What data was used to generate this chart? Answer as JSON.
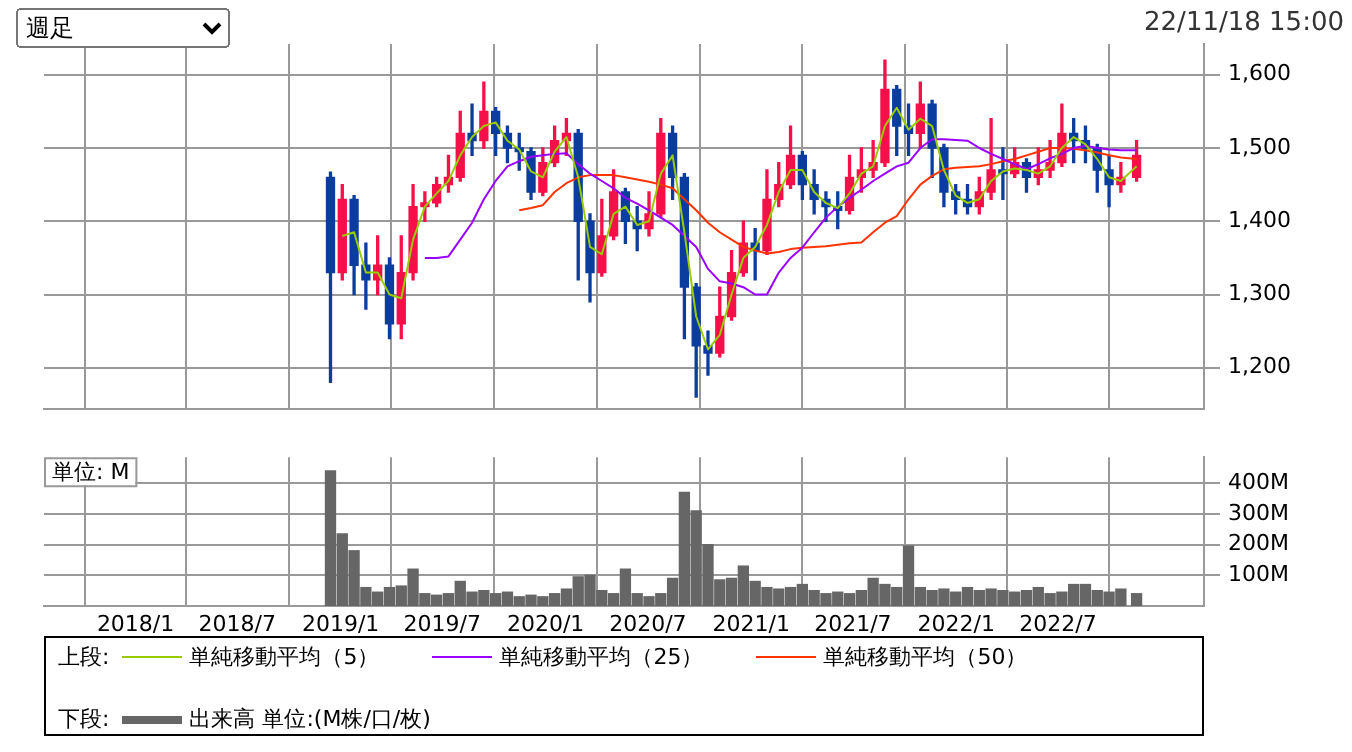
{
  "chart_data": [
    {
      "type": "candlestick",
      "legend_title": "上段:",
      "annotations": [
        "週足",
        "22/11/18 15:00"
      ],
      "x": [
        "2018-12-14",
        "2019-01-04",
        "2019-01-25",
        "2019-02-15",
        "2019-03-08",
        "2019-03-29",
        "2019-04-19",
        "2019-05-10",
        "2019-05-31",
        "2019-06-21",
        "2019-07-12",
        "2019-08-02",
        "2019-08-23",
        "2019-09-13",
        "2019-10-04",
        "2019-10-25",
        "2019-11-15",
        "2019-12-06",
        "2019-12-27",
        "2020-01-17",
        "2020-02-07",
        "2020-02-28",
        "2020-03-20",
        "2020-04-10",
        "2020-05-01",
        "2020-05-22",
        "2020-06-12",
        "2020-07-03",
        "2020-07-24",
        "2020-08-14",
        "2020-09-04",
        "2020-09-25",
        "2020-10-16",
        "2020-11-06",
        "2020-11-27",
        "2020-12-18",
        "2021-01-08",
        "2021-01-29",
        "2021-02-19",
        "2021-03-12",
        "2021-04-02",
        "2021-04-23",
        "2021-05-14",
        "2021-06-04",
        "2021-06-25",
        "2021-07-16",
        "2021-08-06",
        "2021-08-27",
        "2021-09-17",
        "2021-10-08",
        "2021-10-29",
        "2021-11-19",
        "2021-12-10",
        "2021-12-31",
        "2022-01-21",
        "2022-02-11",
        "2022-03-04",
        "2022-03-25",
        "2022-04-15",
        "2022-05-06",
        "2022-05-27",
        "2022-06-17",
        "2022-07-08",
        "2022-07-29",
        "2022-08-19",
        "2022-09-09",
        "2022-09-30",
        "2022-10-21",
        "2022-11-18"
      ],
      "ohlc": [
        [
          1460,
          1467,
          1180,
          1330
        ],
        [
          1330,
          1450,
          1320,
          1430
        ],
        [
          1430,
          1435,
          1300,
          1340
        ],
        [
          1340,
          1370,
          1280,
          1320
        ],
        [
          1320,
          1380,
          1300,
          1340
        ],
        [
          1340,
          1350,
          1240,
          1260
        ],
        [
          1260,
          1380,
          1240,
          1330
        ],
        [
          1330,
          1450,
          1320,
          1420
        ],
        [
          1420,
          1440,
          1400,
          1425
        ],
        [
          1425,
          1460,
          1420,
          1450
        ],
        [
          1450,
          1490,
          1440,
          1460
        ],
        [
          1460,
          1550,
          1455,
          1520
        ],
        [
          1520,
          1560,
          1490,
          1510
        ],
        [
          1510,
          1590,
          1500,
          1550
        ],
        [
          1550,
          1555,
          1490,
          1520
        ],
        [
          1520,
          1530,
          1480,
          1500
        ],
        [
          1500,
          1520,
          1470,
          1495
        ],
        [
          1495,
          1500,
          1430,
          1440
        ],
        [
          1440,
          1500,
          1435,
          1480
        ],
        [
          1480,
          1530,
          1475,
          1510
        ],
        [
          1510,
          1540,
          1490,
          1520
        ],
        [
          1520,
          1525,
          1320,
          1400
        ],
        [
          1400,
          1410,
          1290,
          1330
        ],
        [
          1330,
          1430,
          1325,
          1380
        ],
        [
          1380,
          1470,
          1375,
          1440
        ],
        [
          1440,
          1445,
          1370,
          1400
        ],
        [
          1400,
          1420,
          1360,
          1390
        ],
        [
          1390,
          1440,
          1380,
          1410
        ],
        [
          1410,
          1540,
          1405,
          1520
        ],
        [
          1520,
          1530,
          1430,
          1460
        ],
        [
          1460,
          1465,
          1240,
          1310
        ],
        [
          1310,
          1315,
          1160,
          1230
        ],
        [
          1230,
          1250,
          1190,
          1220
        ],
        [
          1220,
          1310,
          1215,
          1270
        ],
        [
          1270,
          1360,
          1265,
          1330
        ],
        [
          1330,
          1400,
          1325,
          1370
        ],
        [
          1370,
          1390,
          1320,
          1360
        ],
        [
          1360,
          1470,
          1355,
          1430
        ],
        [
          1430,
          1480,
          1420,
          1450
        ],
        [
          1450,
          1530,
          1445,
          1490
        ],
        [
          1490,
          1495,
          1430,
          1450
        ],
        [
          1450,
          1470,
          1410,
          1430
        ],
        [
          1430,
          1440,
          1400,
          1420
        ],
        [
          1420,
          1440,
          1390,
          1415
        ],
        [
          1415,
          1490,
          1410,
          1460
        ],
        [
          1460,
          1500,
          1440,
          1470
        ],
        [
          1470,
          1510,
          1460,
          1480
        ],
        [
          1480,
          1620,
          1475,
          1580
        ],
        [
          1580,
          1585,
          1490,
          1530
        ],
        [
          1530,
          1560,
          1490,
          1520
        ],
        [
          1520,
          1590,
          1500,
          1560
        ],
        [
          1560,
          1565,
          1460,
          1500
        ],
        [
          1500,
          1505,
          1420,
          1440
        ],
        [
          1440,
          1450,
          1410,
          1430
        ],
        [
          1430,
          1450,
          1410,
          1420
        ],
        [
          1420,
          1460,
          1410,
          1440
        ],
        [
          1440,
          1540,
          1430,
          1470
        ],
        [
          1470,
          1500,
          1430,
          1465
        ],
        [
          1465,
          1500,
          1460,
          1480
        ],
        [
          1480,
          1485,
          1440,
          1460
        ],
        [
          1460,
          1500,
          1450,
          1470
        ],
        [
          1470,
          1510,
          1460,
          1480
        ],
        [
          1480,
          1560,
          1475,
          1520
        ],
        [
          1520,
          1540,
          1480,
          1510
        ],
        [
          1510,
          1530,
          1480,
          1500
        ],
        [
          1500,
          1505,
          1440,
          1470
        ],
        [
          1470,
          1490,
          1420,
          1450
        ],
        [
          1450,
          1480,
          1440,
          1460
        ],
        [
          1460,
          1510,
          1455,
          1490
        ]
      ],
      "colors": [
        "#0b3d9e",
        "#f5104a",
        "#0b3d9e",
        "#0b3d9e",
        "#f5104a",
        "#0b3d9e",
        "#f5104a",
        "#f5104a",
        "#f5104a",
        "#f5104a",
        "#f5104a",
        "#f5104a",
        "#0b3d9e",
        "#f5104a",
        "#0b3d9e",
        "#0b3d9e",
        "#0b3d9e",
        "#0b3d9e",
        "#f5104a",
        "#f5104a",
        "#f5104a",
        "#0b3d9e",
        "#0b3d9e",
        "#f5104a",
        "#f5104a",
        "#0b3d9e",
        "#0b3d9e",
        "#f5104a",
        "#f5104a",
        "#0b3d9e",
        "#0b3d9e",
        "#0b3d9e",
        "#0b3d9e",
        "#f5104a",
        "#f5104a",
        "#f5104a",
        "#0b3d9e",
        "#f5104a",
        "#f5104a",
        "#f5104a",
        "#0b3d9e",
        "#0b3d9e",
        "#0b3d9e",
        "#0b3d9e",
        "#f5104a",
        "#f5104a",
        "#f5104a",
        "#f5104a",
        "#0b3d9e",
        "#0b3d9e",
        "#f5104a",
        "#0b3d9e",
        "#0b3d9e",
        "#0b3d9e",
        "#0b3d9e",
        "#f5104a",
        "#f5104a",
        "#0b3d9e",
        "#f5104a",
        "#0b3d9e",
        "#f5104a",
        "#f5104a",
        "#f5104a",
        "#0b3d9e",
        "#0b3d9e",
        "#0b3d9e",
        "#0b3d9e",
        "#f5104a",
        "#f5104a"
      ],
      "series": [
        {
          "name": "単純移動平均（5）",
          "type": "line",
          "color": "#99cc00",
          "values": [
            null,
            1380,
            1385,
            1330,
            1330,
            1300,
            1295,
            1375,
            1420,
            1438,
            1455,
            1490,
            1515,
            1530,
            1535,
            1510,
            1498,
            1468,
            1460,
            1495,
            1515,
            1460,
            1365,
            1355,
            1410,
            1420,
            1395,
            1400,
            1465,
            1490,
            1385,
            1270,
            1225,
            1245,
            1300,
            1350,
            1365,
            1395,
            1440,
            1470,
            1470,
            1440,
            1425,
            1418,
            1438,
            1465,
            1475,
            1530,
            1555,
            1525,
            1540,
            1530,
            1470,
            1435,
            1425,
            1430,
            1455,
            1468,
            1472,
            1470,
            1465,
            1475,
            1500,
            1515,
            1505,
            1485,
            1460,
            1455,
            1475
          ]
        },
        {
          "name": "単純移動平均（25）",
          "type": "line",
          "color": "#9900ff",
          "values": [
            null,
            null,
            null,
            null,
            null,
            null,
            null,
            null,
            1350,
            1350,
            1352,
            1375,
            1398,
            1430,
            1455,
            1475,
            1482,
            1488,
            1490,
            1492,
            1493,
            1478,
            1465,
            1455,
            1445,
            1432,
            1424,
            1415,
            1405,
            1395,
            1380,
            1365,
            1335,
            1318,
            1315,
            1310,
            1300,
            1300,
            1330,
            1350,
            1364,
            1385,
            1405,
            1420,
            1432,
            1443,
            1455,
            1465,
            1475,
            1480,
            1500,
            1512,
            1512,
            1511,
            1510,
            1500,
            1492,
            1485,
            1478,
            1471,
            1478,
            1486,
            1492,
            1500,
            1503,
            1500,
            1498,
            1497,
            1497
          ]
        },
        {
          "name": "単純移動平均（50）",
          "type": "line",
          "color": "#ff3300",
          "values": [
            null,
            null,
            null,
            null,
            null,
            null,
            null,
            null,
            null,
            null,
            null,
            null,
            null,
            null,
            null,
            null,
            1415,
            1418,
            1422,
            1440,
            1452,
            1460,
            1463,
            1463,
            1463,
            1460,
            1457,
            1454,
            1450,
            1445,
            1430,
            1415,
            1398,
            1385,
            1375,
            1365,
            1360,
            1356,
            1358,
            1362,
            1364,
            1365,
            1366,
            1368,
            1370,
            1371,
            1385,
            1398,
            1407,
            1430,
            1450,
            1462,
            1471,
            1473,
            1474,
            1475,
            1478,
            1482,
            1485,
            1490,
            1495,
            1500,
            1500,
            1499,
            1497,
            1494,
            1490,
            1487,
            1485
          ]
        }
      ],
      "xlim": [
        "2017-07-22",
        "2023-03-18"
      ],
      "xticks": [
        {
          "value": "2018-01",
          "label": null
        },
        {
          "value": "2018-07",
          "label": null
        },
        {
          "value": "2019-01",
          "label": null
        },
        {
          "value": "2019-07",
          "label": null
        },
        {
          "value": "2020-01",
          "label": null
        },
        {
          "value": "2020-07",
          "label": null
        },
        {
          "value": "2021-01",
          "label": null
        },
        {
          "value": "2021-07",
          "label": null
        },
        {
          "value": "2022-01",
          "label": null
        },
        {
          "value": "2022-07",
          "label": null
        }
      ],
      "ylim": [
        1144,
        1642
      ],
      "yticks": [
        {
          "value": 1200,
          "label": "1,200"
        },
        {
          "value": 1300,
          "label": "1,300"
        },
        {
          "value": 1400,
          "label": "1,400"
        },
        {
          "value": 1500,
          "label": "1,500"
        },
        {
          "value": 1600,
          "label": "1,600"
        }
      ],
      "grid": true,
      "legend": "bottom",
      "tick_labels": "y",
      "marker": "none"
    },
    {
      "type": "bar",
      "legend_title": "下段:",
      "annotations": [
        "単位: M"
      ],
      "x": [
        "2018-12-14",
        "2019-01-04",
        "2019-01-25",
        "2019-02-15",
        "2019-03-08",
        "2019-03-29",
        "2019-04-19",
        "2019-05-10",
        "2019-05-31",
        "2019-06-21",
        "2019-07-12",
        "2019-08-02",
        "2019-08-23",
        "2019-09-13",
        "2019-10-04",
        "2019-10-25",
        "2019-11-15",
        "2019-12-06",
        "2019-12-27",
        "2020-01-17",
        "2020-02-07",
        "2020-02-28",
        "2020-03-20",
        "2020-04-10",
        "2020-05-01",
        "2020-05-22",
        "2020-06-12",
        "2020-07-03",
        "2020-07-24",
        "2020-08-14",
        "2020-09-04",
        "2020-09-25",
        "2020-10-16",
        "2020-11-06",
        "2020-11-27",
        "2020-12-18",
        "2021-01-08",
        "2021-01-29",
        "2021-02-19",
        "2021-03-12",
        "2021-04-02",
        "2021-04-23",
        "2021-05-14",
        "2021-06-04",
        "2021-06-25",
        "2021-07-16",
        "2021-08-06",
        "2021-08-27",
        "2021-09-17",
        "2021-10-08",
        "2021-10-29",
        "2021-11-19",
        "2021-12-10",
        "2021-12-31",
        "2022-01-21",
        "2022-02-11",
        "2022-03-04",
        "2022-03-25",
        "2022-04-15",
        "2022-05-06",
        "2022-05-27",
        "2022-06-17",
        "2022-07-08",
        "2022-07-29",
        "2022-08-19",
        "2022-09-09",
        "2022-09-30",
        "2022-10-21",
        "2022-11-18"
      ],
      "series": [
        {
          "name": "出来高 単位:(M株/口/枚)",
          "color": "#666666",
          "values": [
            440,
            235,
            180,
            60,
            45,
            60,
            65,
            120,
            40,
            35,
            40,
            80,
            45,
            50,
            40,
            45,
            30,
            35,
            30,
            40,
            55,
            95,
            100,
            50,
            40,
            120,
            40,
            30,
            40,
            90,
            370,
            310,
            200,
            85,
            90,
            130,
            80,
            60,
            55,
            60,
            70,
            50,
            40,
            45,
            40,
            50,
            90,
            70,
            60,
            195,
            60,
            50,
            55,
            45,
            60,
            50,
            55,
            50,
            45,
            50,
            60,
            40,
            45,
            70,
            70,
            50,
            45,
            55,
            40
          ]
        }
      ],
      "xlim": [
        "2017-07-22",
        "2023-03-18"
      ],
      "xticks": [
        {
          "value": "2018-01",
          "label": "2018/1"
        },
        {
          "value": "2018-07",
          "label": "2018/7"
        },
        {
          "value": "2019-01",
          "label": "2019/1"
        },
        {
          "value": "2019-07",
          "label": "2019/7"
        },
        {
          "value": "2020-01",
          "label": "2020/1"
        },
        {
          "value": "2020-07",
          "label": "2020/7"
        },
        {
          "value": "2021-01",
          "label": "2021/1"
        },
        {
          "value": "2021-07",
          "label": "2021/7"
        },
        {
          "value": "2022-01",
          "label": "2022/1"
        },
        {
          "value": "2022-07",
          "label": "2022/7"
        }
      ],
      "ylim": [
        0,
        485
      ],
      "yticks": [
        {
          "value": 100,
          "label": "100M"
        },
        {
          "value": 200,
          "label": "200M"
        },
        {
          "value": 300,
          "label": "300M"
        },
        {
          "value": 400,
          "label": "400M"
        }
      ],
      "grid": true,
      "legend": "bottom"
    }
  ]
}
